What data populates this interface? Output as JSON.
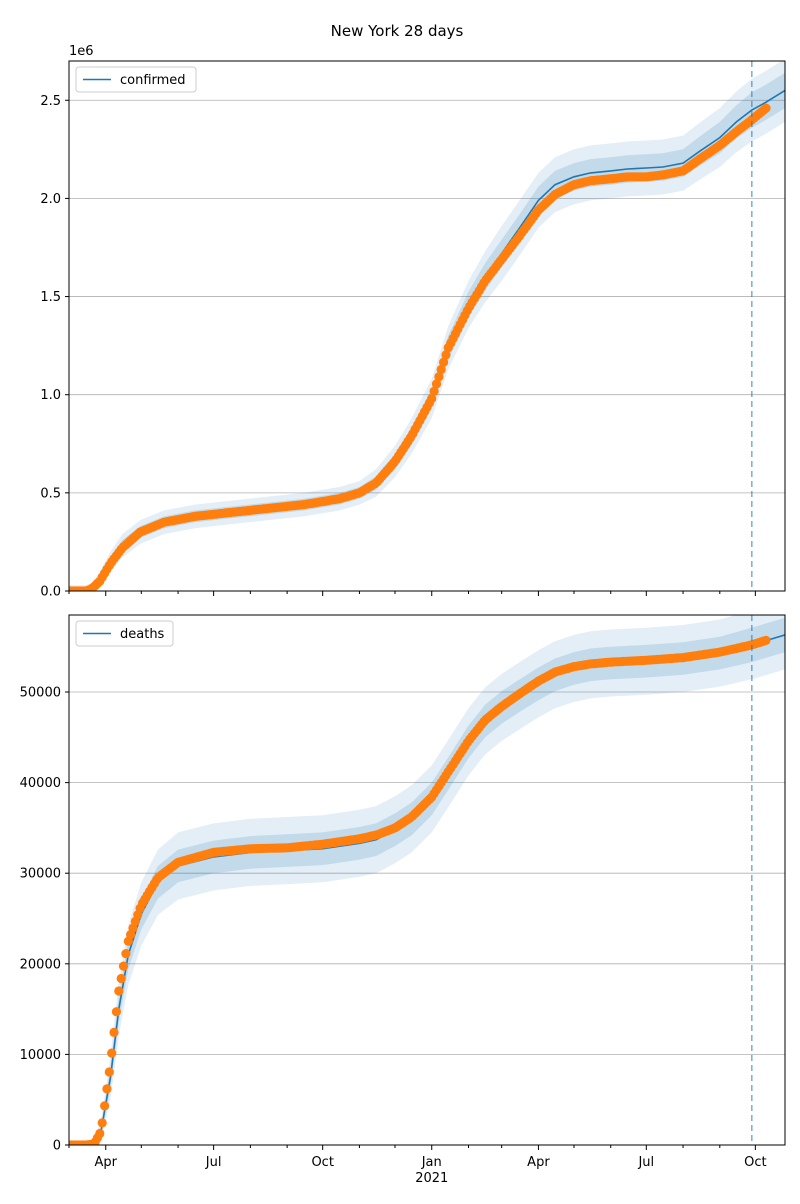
{
  "title": "New York 28 days",
  "chart_data": [
    {
      "type": "line",
      "name": "confirmed-panel",
      "legend": [
        "confirmed"
      ],
      "legend_placement": "top-left",
      "grid": "y",
      "scale_label": "1e6",
      "ylim": [
        0,
        2.7
      ],
      "yticks": [
        0.0,
        0.5,
        1.0,
        1.5,
        2.0,
        2.5
      ],
      "ytick_labels": [
        "0.0",
        "0.5",
        "1.0",
        "1.5",
        "2.0",
        "2.5"
      ],
      "xlim": [
        "2020-03-01",
        "2021-10-26"
      ],
      "forecast_date": "2021-09-28",
      "model": {
        "x": [
          "2020-03-01",
          "2020-03-15",
          "2020-03-20",
          "2020-03-27",
          "2020-04-05",
          "2020-04-15",
          "2020-04-30",
          "2020-05-20",
          "2020-06-15",
          "2020-07-15",
          "2020-08-15",
          "2020-09-15",
          "2020-10-15",
          "2020-11-01",
          "2020-11-15",
          "2020-12-01",
          "2020-12-15",
          "2021-01-01",
          "2021-01-15",
          "2021-02-01",
          "2021-02-15",
          "2021-03-01",
          "2021-03-15",
          "2021-04-01",
          "2021-04-15",
          "2021-05-01",
          "2021-05-15",
          "2021-06-01",
          "2021-06-15",
          "2021-07-01",
          "2021-07-15",
          "2021-08-01",
          "2021-08-15",
          "2021-09-01",
          "2021-09-15",
          "2021-09-28",
          "2021-10-10",
          "2021-10-26"
        ],
        "y": [
          0.0,
          0.0,
          0.01,
          0.06,
          0.15,
          0.23,
          0.3,
          0.35,
          0.38,
          0.4,
          0.42,
          0.44,
          0.47,
          0.5,
          0.55,
          0.66,
          0.79,
          0.98,
          1.24,
          1.46,
          1.6,
          1.72,
          1.84,
          1.99,
          2.07,
          2.11,
          2.13,
          2.14,
          2.15,
          2.155,
          2.16,
          2.18,
          2.24,
          2.31,
          2.39,
          2.45,
          2.49,
          2.55
        ],
        "band_inner": [
          0.015,
          0.015,
          0.015,
          0.02,
          0.025,
          0.03,
          0.03,
          0.03,
          0.03,
          0.03,
          0.03,
          0.03,
          0.03,
          0.03,
          0.035,
          0.04,
          0.045,
          0.05,
          0.06,
          0.065,
          0.07,
          0.07,
          0.07,
          0.07,
          0.07,
          0.07,
          0.07,
          0.07,
          0.07,
          0.07,
          0.07,
          0.07,
          0.075,
          0.08,
          0.085,
          0.09,
          0.09,
          0.09
        ],
        "band_outer": [
          0.03,
          0.03,
          0.03,
          0.04,
          0.05,
          0.06,
          0.06,
          0.06,
          0.06,
          0.06,
          0.06,
          0.06,
          0.06,
          0.06,
          0.07,
          0.08,
          0.09,
          0.1,
          0.11,
          0.12,
          0.13,
          0.14,
          0.14,
          0.14,
          0.14,
          0.14,
          0.14,
          0.14,
          0.14,
          0.14,
          0.14,
          0.14,
          0.145,
          0.15,
          0.155,
          0.16,
          0.16,
          0.16
        ]
      },
      "observed": {
        "x": [
          "2020-03-01",
          "2020-03-15",
          "2020-03-20",
          "2020-03-27",
          "2020-04-05",
          "2020-04-15",
          "2020-04-30",
          "2020-05-20",
          "2020-06-15",
          "2020-07-15",
          "2020-08-15",
          "2020-09-15",
          "2020-10-15",
          "2020-11-01",
          "2020-11-15",
          "2020-12-01",
          "2020-12-15",
          "2021-01-01",
          "2021-01-15",
          "2021-02-01",
          "2021-02-15",
          "2021-03-01",
          "2021-03-15",
          "2021-04-01",
          "2021-04-15",
          "2021-05-01",
          "2021-05-15",
          "2021-06-01",
          "2021-06-15",
          "2021-07-01",
          "2021-07-15",
          "2021-08-01",
          "2021-08-15",
          "2021-09-01",
          "2021-09-15",
          "2021-09-28",
          "2021-10-10"
        ],
        "y": [
          0.0,
          0.0,
          0.01,
          0.05,
          0.14,
          0.22,
          0.3,
          0.35,
          0.38,
          0.4,
          0.42,
          0.44,
          0.47,
          0.5,
          0.55,
          0.66,
          0.79,
          0.98,
          1.24,
          1.44,
          1.58,
          1.69,
          1.8,
          1.94,
          2.02,
          2.07,
          2.09,
          2.1,
          2.11,
          2.11,
          2.12,
          2.14,
          2.2,
          2.27,
          2.34,
          2.4,
          2.46
        ]
      },
      "series": [
        {
          "name": "confirmed"
        }
      ]
    },
    {
      "type": "line",
      "name": "deaths-panel",
      "legend": [
        "deaths"
      ],
      "legend_placement": "top-left",
      "grid": "y",
      "ylim": [
        0,
        58500
      ],
      "yticks": [
        0,
        10000,
        20000,
        30000,
        40000,
        50000
      ],
      "ytick_labels": [
        "0",
        "10000",
        "20000",
        "30000",
        "40000",
        "50000"
      ],
      "xlim": [
        "2020-03-01",
        "2021-10-26"
      ],
      "xtick_labels": [
        "Apr",
        "Jul",
        "Oct",
        "Jan",
        "Apr",
        "Jul",
        "Oct"
      ],
      "xticks": [
        "2020-04-01",
        "2020-07-01",
        "2020-10-01",
        "2021-01-01",
        "2021-04-01",
        "2021-07-01",
        "2021-10-01"
      ],
      "xlabel_year": "2021",
      "forecast_date": "2021-09-28",
      "model": {
        "x": [
          "2020-03-01",
          "2020-03-15",
          "2020-03-22",
          "2020-03-28",
          "2020-04-05",
          "2020-04-12",
          "2020-04-20",
          "2020-05-01",
          "2020-05-15",
          "2020-06-01",
          "2020-07-01",
          "2020-08-01",
          "2020-09-01",
          "2020-10-01",
          "2020-11-01",
          "2020-11-15",
          "2020-12-01",
          "2020-12-15",
          "2021-01-01",
          "2021-01-15",
          "2021-02-01",
          "2021-02-15",
          "2021-03-01",
          "2021-03-15",
          "2021-04-01",
          "2021-04-15",
          "2021-05-01",
          "2021-05-15",
          "2021-06-01",
          "2021-07-01",
          "2021-08-01",
          "2021-09-01",
          "2021-09-28",
          "2021-10-26"
        ],
        "y": [
          0,
          0,
          100,
          1500,
          7500,
          15000,
          21000,
          25500,
          29000,
          30800,
          31800,
          32300,
          32500,
          32700,
          33300,
          33700,
          34800,
          36000,
          38200,
          41000,
          44500,
          46800,
          48300,
          49500,
          50900,
          51900,
          52600,
          53000,
          53200,
          53400,
          53700,
          54300,
          55200,
          56300
        ],
        "band_inner": [
          200,
          200,
          300,
          600,
          1200,
          1500,
          1600,
          1700,
          1800,
          1800,
          1800,
          1800,
          1800,
          1800,
          1800,
          1800,
          1800,
          1800,
          1800,
          1800,
          1800,
          1800,
          1800,
          1800,
          1800,
          1800,
          1800,
          1800,
          1800,
          1800,
          1800,
          1800,
          1900,
          1900
        ],
        "band_outer": [
          400,
          400,
          600,
          1200,
          2400,
          3000,
          3300,
          3500,
          3600,
          3700,
          3700,
          3700,
          3700,
          3700,
          3700,
          3700,
          3700,
          3700,
          3700,
          3700,
          3700,
          3700,
          3700,
          3700,
          3700,
          3700,
          3700,
          3700,
          3700,
          3700,
          3700,
          3700,
          3800,
          3800
        ]
      },
      "observed": {
        "x": [
          "2020-03-01",
          "2020-03-15",
          "2020-03-22",
          "2020-03-28",
          "2020-04-05",
          "2020-04-12",
          "2020-04-20",
          "2020-05-01",
          "2020-05-15",
          "2020-06-01",
          "2020-07-01",
          "2020-08-01",
          "2020-09-01",
          "2020-10-01",
          "2020-11-01",
          "2020-11-15",
          "2020-12-01",
          "2020-12-15",
          "2021-01-01",
          "2021-01-15",
          "2021-02-01",
          "2021-02-15",
          "2021-03-01",
          "2021-03-15",
          "2021-04-01",
          "2021-04-15",
          "2021-05-01",
          "2021-05-15",
          "2021-06-01",
          "2021-07-01",
          "2021-08-01",
          "2021-09-01",
          "2021-09-28",
          "2021-10-10"
        ],
        "y": [
          0,
          0,
          100,
          1500,
          9000,
          17000,
          22500,
          26500,
          29500,
          31200,
          32300,
          32700,
          32800,
          33200,
          33800,
          34200,
          35000,
          36200,
          38400,
          41200,
          44600,
          46900,
          48400,
          49700,
          51200,
          52200,
          52800,
          53100,
          53300,
          53500,
          53800,
          54400,
          55200,
          55700
        ]
      },
      "series": [
        {
          "name": "deaths"
        }
      ]
    }
  ]
}
